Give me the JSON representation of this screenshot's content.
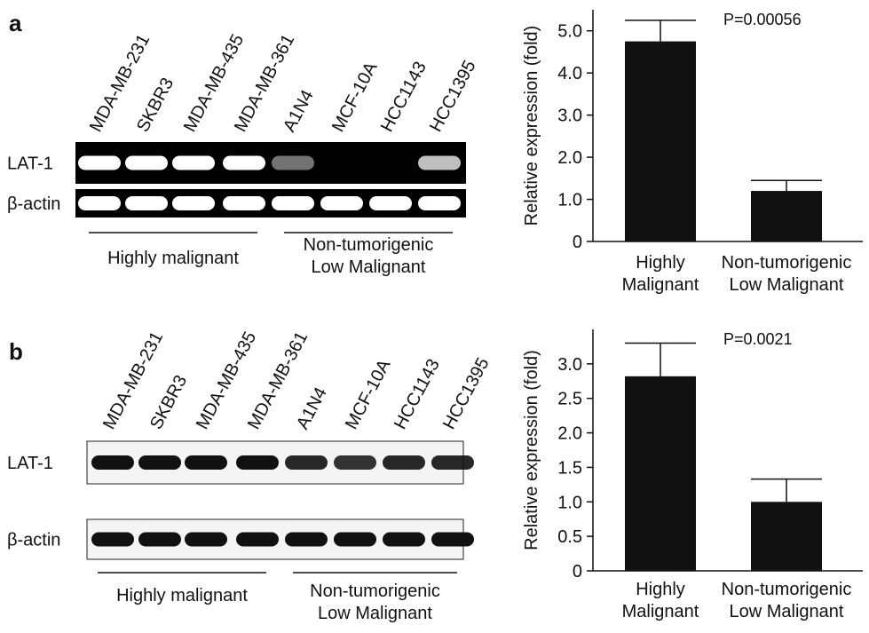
{
  "gels": [
    {
      "label": "a",
      "lanes": [
        "MDA-MB-231",
        "SKBR3",
        "MDA-MB-435",
        "MDA-MB-361",
        "A1N4",
        "MCF-10A",
        "HCC1143",
        "HCC1395"
      ],
      "rows": [
        "LAT-1",
        "β-actin"
      ],
      "groups": [
        "Highly malignant",
        "Non-tumorigenic\nLow Malignant"
      ]
    },
    {
      "label": "b",
      "lanes": [
        "MDA-MB-231",
        "SKBR3",
        "MDA-MB-435",
        "MDA-MB-361",
        "A1N4",
        "MCF-10A",
        "HCC1143",
        "HCC1395"
      ],
      "rows": [
        "LAT-1",
        "β-actin"
      ],
      "groups": [
        "Highly malignant",
        "Non-tumorigenic\nLow Malignant"
      ]
    }
  ],
  "chart_data": [
    {
      "type": "bar",
      "ylabel": "Relative  expression (fold)",
      "annotation": "P=0.00056",
      "categories": [
        "Highly\nMalignant",
        "Non-tumorigenic\nLow Malignant"
      ],
      "values": [
        4.75,
        1.2
      ],
      "errors": [
        0.5,
        0.25
      ],
      "color": "#111111",
      "ylim": [
        0,
        5.5
      ],
      "yticks": [
        0,
        {
          "value": 1,
          "label": "1.0"
        },
        {
          "value": 2,
          "label": "2.0"
        },
        {
          "value": 3,
          "label": "3.0"
        },
        {
          "value": 4,
          "label": "4.0"
        },
        {
          "value": 5,
          "label": "5.0"
        }
      ]
    },
    {
      "type": "bar",
      "ylabel": "Relative  expression (fold)",
      "annotation": "P=0.0021",
      "categories": [
        "Highly\nMalignant",
        "Non-tumorigenic\nLow Malignant"
      ],
      "values": [
        2.82,
        1.0
      ],
      "errors": [
        0.48,
        0.33
      ],
      "color": "#111111",
      "ylim": [
        0,
        3.5
      ],
      "yticks": [
        0,
        0.5,
        {
          "value": 1,
          "label": "1.0"
        },
        1.5,
        {
          "value": 2,
          "label": "2.0"
        },
        2.5,
        {
          "value": 3,
          "label": "3.0"
        }
      ]
    }
  ]
}
